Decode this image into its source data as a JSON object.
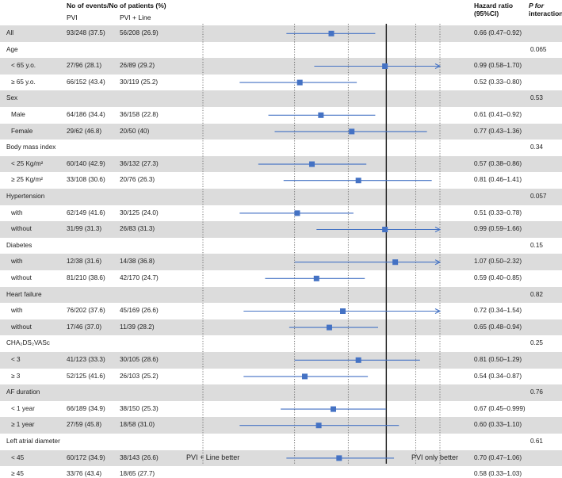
{
  "headers": {
    "events": "No of events/No of patients (%)",
    "pvi": "PVI",
    "pvi_line": "PVI + Line",
    "hr_line1": "Hazard ratio",
    "hr_line2": "(95%CI)",
    "p_line1": "P for",
    "p_line2": "interaction"
  },
  "axis": {
    "ticks": [
      "0.25",
      "0.50",
      "1.00",
      "1.50"
    ],
    "left_label": "PVI + Line better",
    "right_label": "PVI only better"
  },
  "colors": {
    "marker": "#4472c4",
    "shade": "#dcdcdc",
    "ref": "#222222"
  },
  "chart_data": {
    "type": "forest",
    "x_scale": "log",
    "xlim": [
      0.25,
      1.5
    ],
    "reference": 1.0,
    "rows": [
      {
        "label": "All",
        "kind": "data",
        "shade": true,
        "pvi": "93/248 (37.5)",
        "line": "56/208 (26.9)",
        "hr": 0.66,
        "lo": 0.47,
        "hi": 0.92,
        "hr_text": "0.66 (0.47–0.92)",
        "p": ""
      },
      {
        "label": "Age",
        "kind": "group",
        "shade": false,
        "p": "0.065"
      },
      {
        "label": "< 65 y.o.",
        "kind": "data",
        "shade": true,
        "pvi": "27/96 (28.1)",
        "line": "26/89 (29.2)",
        "hr": 0.99,
        "lo": 0.58,
        "hi": 1.7,
        "arrow": true,
        "hr_text": "0.99 (0.58–1.70)",
        "p": ""
      },
      {
        "label": "≥ 65 y.o.",
        "kind": "data",
        "shade": false,
        "pvi": "66/152 (43.4)",
        "line": "30/119 (25.2)",
        "hr": 0.52,
        "lo": 0.33,
        "hi": 0.8,
        "hr_text": "0.52 (0.33–0.80)",
        "p": ""
      },
      {
        "label": "Sex",
        "kind": "group",
        "shade": true,
        "p": "0.53"
      },
      {
        "label": "Male",
        "kind": "data",
        "shade": false,
        "pvi": "64/186 (34.4)",
        "line": "36/158 (22.8)",
        "hr": 0.61,
        "lo": 0.41,
        "hi": 0.92,
        "hr_text": "0.61 (0.41–0.92)",
        "p": ""
      },
      {
        "label": "Female",
        "kind": "data",
        "shade": true,
        "pvi": "29/62 (46.8)",
        "line": "20/50 (40)",
        "hr": 0.77,
        "lo": 0.43,
        "hi": 1.36,
        "hr_text": "0.77 (0.43–1.36)",
        "p": ""
      },
      {
        "label": "Body mass index",
        "kind": "group",
        "shade": false,
        "p": "0.34"
      },
      {
        "label": "< 25 Kg/m²",
        "kind": "data",
        "shade": true,
        "pvi": "60/140 (42.9)",
        "line": "36/132 (27.3)",
        "hr": 0.57,
        "lo": 0.38,
        "hi": 0.86,
        "hr_text": "0.57 (0.38–0.86)",
        "p": ""
      },
      {
        "label": "≥ 25 Kg/m²",
        "kind": "data",
        "shade": false,
        "pvi": "33/108 (30.6)",
        "line": "20/76 (26.3)",
        "hr": 0.81,
        "lo": 0.46,
        "hi": 1.41,
        "hr_text": "0.81 (0.46–1.41)",
        "p": ""
      },
      {
        "label": "Hypertension",
        "kind": "group",
        "shade": true,
        "p": "0.057"
      },
      {
        "label": "with",
        "kind": "data",
        "shade": false,
        "pvi": "62/149 (41.6)",
        "line": "30/125 (24.0)",
        "hr": 0.51,
        "lo": 0.33,
        "hi": 0.78,
        "hr_text": "0.51 (0.33–0.78)",
        "p": ""
      },
      {
        "label": "without",
        "kind": "data",
        "shade": true,
        "pvi": "31/99 (31.3)",
        "line": "26/83 (31.3)",
        "hr": 0.99,
        "lo": 0.59,
        "hi": 1.66,
        "arrow": true,
        "hr_text": "0.99 (0.59–1.66)",
        "p": ""
      },
      {
        "label": "Diabetes",
        "kind": "group",
        "shade": false,
        "p": "0.15"
      },
      {
        "label": "with",
        "kind": "data",
        "shade": true,
        "pvi": "12/38 (31.6)",
        "line": "14/38 (36.8)",
        "hr": 1.07,
        "lo": 0.5,
        "hi": 2.32,
        "arrow": true,
        "hr_text": "1.07 (0.50–2.32)",
        "p": ""
      },
      {
        "label": "without",
        "kind": "data",
        "shade": false,
        "pvi": "81/210 (38.6)",
        "line": "42/170 (24.7)",
        "hr": 0.59,
        "lo": 0.4,
        "hi": 0.85,
        "hr_text": "0.59 (0.40–0.85)",
        "p": ""
      },
      {
        "label": "Heart failure",
        "kind": "group",
        "shade": true,
        "p": "0.82"
      },
      {
        "label": "with",
        "kind": "data",
        "shade": false,
        "pvi": "76/202 (37.6)",
        "line": "45/169 (26.6)",
        "hr": 0.72,
        "lo": 0.34,
        "hi": 1.54,
        "arrow": true,
        "hr_text": "0.72 (0.34–1.54)",
        "p": ""
      },
      {
        "label": "without",
        "kind": "data",
        "shade": true,
        "pvi": "17/46 (37.0)",
        "line": "11/39 (28.2)",
        "hr": 0.65,
        "lo": 0.48,
        "hi": 0.94,
        "hr_text": "0.65 (0.48–0.94)",
        "p": ""
      },
      {
        "label": "CHA₂DS₂VASc",
        "kind": "group",
        "shade": false,
        "p": "0.25"
      },
      {
        "label": "< 3",
        "kind": "data",
        "shade": true,
        "pvi": "41/123 (33.3)",
        "line": "30/105 (28.6)",
        "hr": 0.81,
        "lo": 0.5,
        "hi": 1.29,
        "hr_text": "0.81 (0.50–1.29)",
        "p": ""
      },
      {
        "label": "≥ 3",
        "kind": "data",
        "shade": false,
        "pvi": "52/125 (41.6)",
        "line": "26/103 (25.2)",
        "hr": 0.54,
        "lo": 0.34,
        "hi": 0.87,
        "hr_text": "0.54 (0.34–0.87)",
        "p": ""
      },
      {
        "label": "AF duration",
        "kind": "group",
        "shade": true,
        "p": "0.76"
      },
      {
        "label": "< 1 year",
        "kind": "data",
        "shade": false,
        "pvi": "66/189 (34.9)",
        "line": "38/150 (25.3)",
        "hr": 0.67,
        "lo": 0.45,
        "hi": 0.999,
        "hr_text": "0.67 (0.45–0.999)",
        "p": ""
      },
      {
        "label": "≥ 1 year",
        "kind": "data",
        "shade": true,
        "pvi": "27/59 (45.8)",
        "line": "18/58 (31.0)",
        "hr": 0.6,
        "lo": 0.33,
        "hi": 1.1,
        "hr_text": "0.60 (0.33–1.10)",
        "p": ""
      },
      {
        "label": "Left atrial diameter",
        "kind": "group",
        "shade": false,
        "p": "0.61"
      },
      {
        "label": "< 45",
        "kind": "data",
        "shade": true,
        "pvi": "60/172 (34.9)",
        "line": "38/143 (26.6)",
        "hr": 0.7,
        "lo": 0.47,
        "hi": 1.06,
        "hr_text": "0.70 (0.47–1.06)",
        "p": ""
      },
      {
        "label": "≥ 45",
        "kind": "data",
        "shade": false,
        "pvi": "33/76 (43.4)",
        "line": "18/65 (27.7)",
        "hr": 0.58,
        "lo": 0.33,
        "hi": 1.03,
        "hr_text": "0.58 (0.33–1.03)",
        "p": ""
      }
    ]
  }
}
